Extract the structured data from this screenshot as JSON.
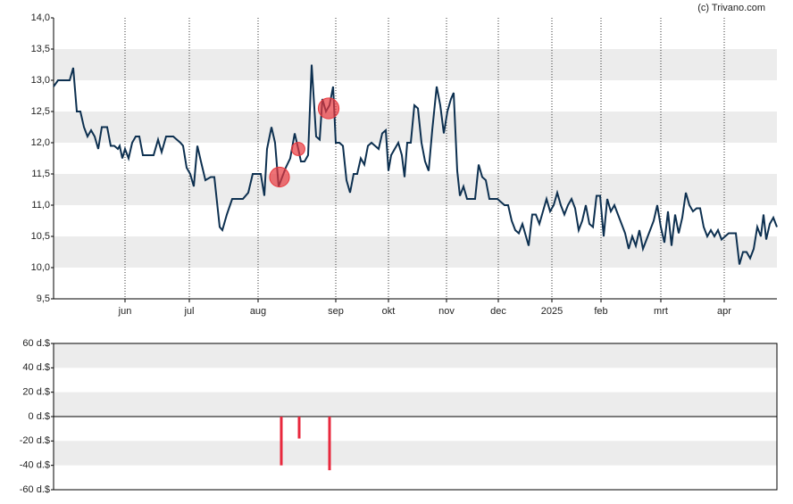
{
  "chart_data": [
    {
      "type": "line",
      "credit": "(c) Trivano.com",
      "color": "#0d3050",
      "ylim": [
        9.5,
        14
      ],
      "yticks": [
        {
          "value": 9.5,
          "label": "9,5"
        },
        {
          "value": 10,
          "label": "10,0"
        },
        {
          "value": 10.5,
          "label": "10,5"
        },
        {
          "value": 11,
          "label": "11,0"
        },
        {
          "value": 11.5,
          "label": "11,5"
        },
        {
          "value": 12,
          "label": "12,0"
        },
        {
          "value": 12.5,
          "label": "12,5"
        },
        {
          "value": 13,
          "label": "13,0"
        },
        {
          "value": 13.5,
          "label": "13,5"
        },
        {
          "value": 14,
          "label": "14,0"
        }
      ],
      "xlim": [
        0,
        202.5
      ],
      "xticks": [
        {
          "value": 20,
          "label": "jun"
        },
        {
          "value": 38,
          "label": "jul"
        },
        {
          "value": 57.25,
          "label": "aug"
        },
        {
          "value": 79,
          "label": "sep"
        },
        {
          "value": 93.75,
          "label": "okt"
        },
        {
          "value": 110,
          "label": "nov"
        },
        {
          "value": 124.5,
          "label": "dec"
        },
        {
          "value": 139.5,
          "label": "2025"
        },
        {
          "value": 153.25,
          "label": "feb"
        },
        {
          "value": 170,
          "label": "mrt"
        },
        {
          "value": 187.75,
          "label": "apr"
        }
      ],
      "x": [
        0,
        1.25,
        3,
        4.5,
        5.5,
        6.5,
        7.5,
        8.5,
        9.5,
        10.5,
        11.5,
        12.5,
        13.5,
        15,
        16,
        17,
        18,
        18.5,
        19.25,
        20,
        21,
        22,
        23,
        24,
        25,
        26.5,
        28,
        29.25,
        30.25,
        31.5,
        32.5,
        33.5,
        34.5,
        35.5,
        36.25,
        37.25,
        38.25,
        39.25,
        40.25,
        41.25,
        42.5,
        44,
        45,
        46.5,
        47.25,
        48.5,
        50,
        51.5,
        53,
        54.5,
        55.75,
        57,
        58,
        59,
        59.75,
        61,
        62,
        63,
        64,
        65,
        66.25,
        67.5,
        68.5,
        69.25,
        70.25,
        71.25,
        72.25,
        73.5,
        74.5,
        75.25,
        76.25,
        77.25,
        78.25,
        79,
        80,
        81,
        82,
        83,
        84,
        85,
        86,
        87,
        88,
        89,
        90,
        91,
        92,
        93,
        93.75,
        94.5,
        95.5,
        96.5,
        97.5,
        98.25,
        99,
        100,
        101,
        102,
        103,
        104,
        105,
        106,
        107.25,
        108.25,
        109.25,
        110.25,
        111.25,
        112,
        113,
        113.75,
        114.75,
        115.75,
        117,
        118,
        119,
        120,
        121,
        122,
        123.25,
        124.25,
        125.25,
        126.25,
        127.25,
        128.25,
        129.25,
        130.25,
        131.25,
        132.25,
        133,
        134,
        135,
        136,
        137,
        138,
        139,
        140,
        141,
        142,
        143,
        144,
        145,
        146,
        147,
        148,
        149,
        150,
        151,
        152,
        153,
        154,
        155,
        156,
        157,
        158,
        159,
        160,
        161,
        162,
        163,
        164,
        165,
        166,
        167,
        168,
        169,
        170,
        171,
        172,
        173,
        174,
        175,
        176,
        177,
        178,
        179,
        180,
        181,
        182,
        183,
        184,
        185,
        186,
        187,
        188,
        189,
        190,
        191,
        192,
        193,
        194,
        195,
        196,
        197,
        198,
        198.75,
        199.5,
        200.5,
        201.5,
        202.5
      ],
      "values": [
        12.9,
        13.0,
        13.0,
        13.0,
        13.2,
        12.5,
        12.5,
        12.25,
        12.1,
        12.2,
        12.1,
        11.9,
        12.25,
        12.25,
        11.95,
        11.95,
        11.9,
        11.95,
        11.75,
        11.9,
        11.75,
        12.0,
        12.1,
        12.1,
        11.8,
        11.8,
        11.8,
        12.05,
        11.85,
        12.1,
        12.1,
        12.1,
        12.05,
        12.0,
        11.95,
        11.6,
        11.5,
        11.3,
        11.95,
        11.7,
        11.4,
        11.45,
        11.45,
        10.65,
        10.6,
        10.85,
        11.1,
        11.1,
        11.1,
        11.2,
        11.5,
        11.5,
        11.5,
        11.15,
        11.9,
        12.25,
        12.0,
        11.3,
        11.45,
        11.6,
        11.75,
        12.15,
        11.9,
        11.7,
        11.7,
        11.8,
        13.25,
        12.1,
        12.05,
        12.7,
        12.5,
        12.6,
        12.9,
        12.0,
        12.0,
        11.95,
        11.4,
        11.2,
        11.5,
        11.5,
        11.75,
        11.65,
        11.95,
        12.0,
        11.95,
        11.9,
        12.15,
        12.2,
        11.55,
        11.8,
        11.9,
        12.0,
        11.8,
        11.45,
        12.0,
        12.0,
        12.6,
        12.55,
        12.0,
        11.7,
        11.55,
        12.2,
        12.9,
        12.6,
        12.15,
        12.5,
        12.7,
        12.8,
        11.55,
        11.15,
        11.3,
        11.1,
        11.1,
        11.1,
        11.65,
        11.45,
        11.4,
        11.1,
        11.1,
        11.1,
        11.05,
        11.0,
        11.0,
        10.75,
        10.6,
        10.55,
        10.7,
        10.5,
        10.35,
        10.85,
        10.85,
        10.7,
        10.9,
        11.1,
        10.9,
        11.0,
        11.2,
        11.0,
        10.85,
        11.0,
        11.1,
        10.95,
        10.6,
        10.75,
        11.0,
        10.7,
        10.65,
        11.15,
        11.15,
        10.5,
        11.1,
        10.9,
        11.0,
        10.85,
        10.7,
        10.55,
        10.3,
        10.5,
        10.35,
        10.6,
        10.3,
        10.45,
        10.6,
        10.75,
        11.0,
        10.65,
        10.4,
        10.9,
        10.35,
        10.85,
        10.55,
        10.8,
        11.2,
        11.0,
        10.9,
        10.95,
        10.95,
        10.65,
        10.5,
        10.6,
        10.5,
        10.6,
        10.45,
        10.5,
        10.55,
        10.55,
        10.55,
        10.05,
        10.25,
        10.25,
        10.15,
        10.3,
        10.65,
        10.5,
        10.85,
        10.45,
        10.7,
        10.8,
        10.65
      ],
      "markers": {
        "x": [
          63.25,
          68.5,
          77
        ],
        "values": [
          11.45,
          11.9,
          12.55
        ],
        "color": "#e8383d"
      }
    },
    {
      "type": "bar",
      "color": "#e8283d",
      "ylim": [
        -60,
        60
      ],
      "yticks": [
        {
          "value": -60,
          "label": "-60 d.$"
        },
        {
          "value": -40,
          "label": "-40 d.$"
        },
        {
          "value": -20,
          "label": "-20 d.$"
        },
        {
          "value": 0,
          "label": "0 d.$"
        },
        {
          "value": 20,
          "label": "20 d.$"
        },
        {
          "value": 40,
          "label": "40 d.$"
        },
        {
          "value": 60,
          "label": "60 d.$"
        }
      ],
      "xlim": [
        0,
        202.5
      ],
      "x": [
        63.75,
        68.75,
        77.25
      ],
      "values": [
        -40,
        -18,
        -44
      ]
    }
  ]
}
